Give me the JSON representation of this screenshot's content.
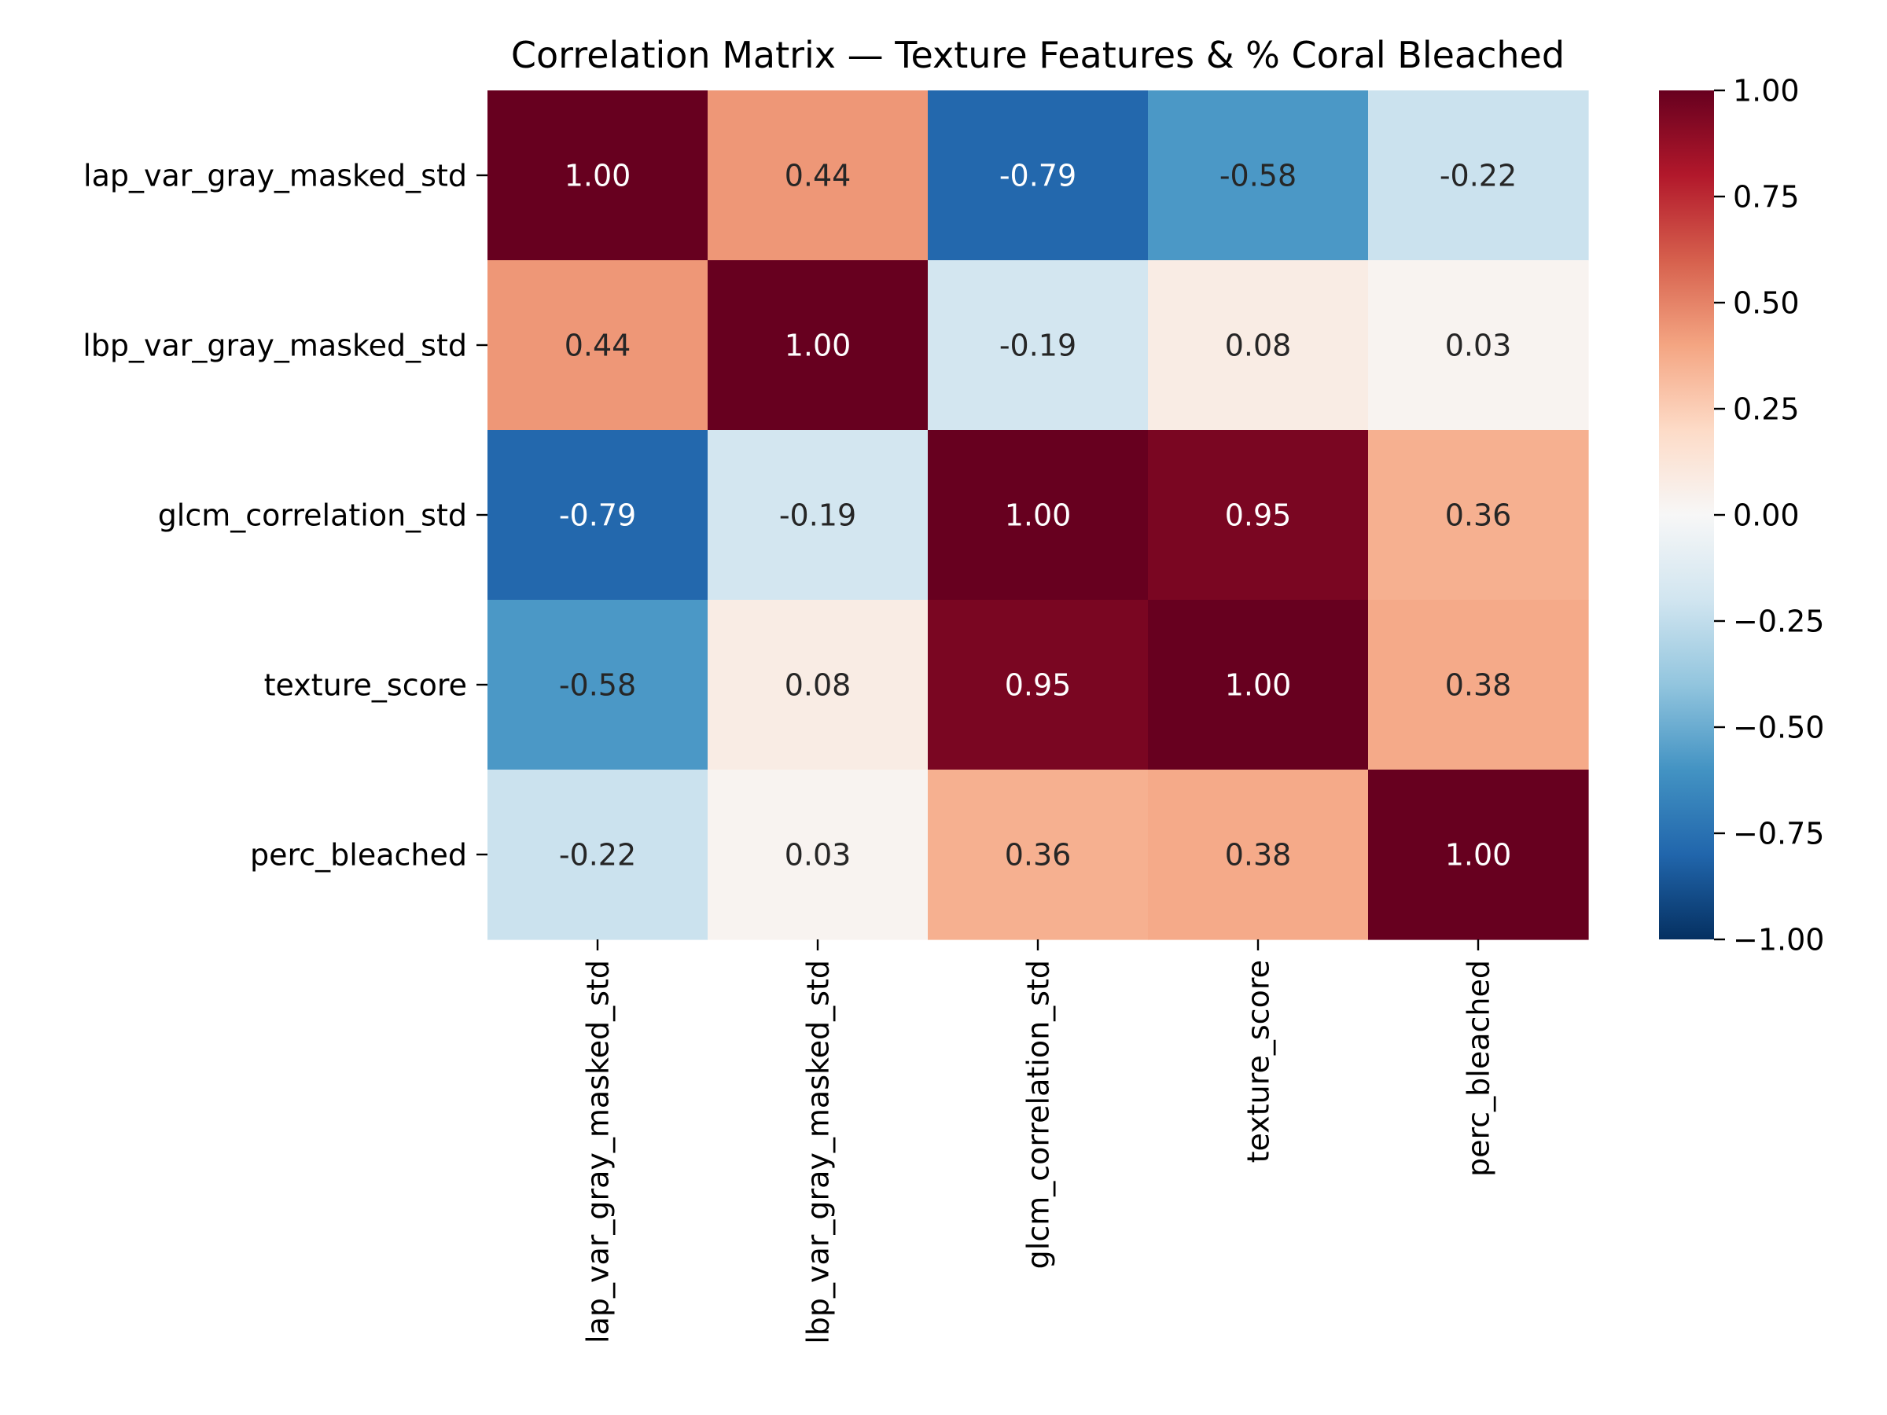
{
  "chart_data": {
    "type": "heatmap",
    "title": "Correlation Matrix — Texture Features & % Coral Bleached",
    "xlabel": "",
    "ylabel": "",
    "rows": [
      "lap_var_gray_masked_std",
      "lbp_var_gray_masked_std",
      "glcm_correlation_std",
      "texture_score",
      "perc_bleached"
    ],
    "columns": [
      "lap_var_gray_masked_std",
      "lbp_var_gray_masked_std",
      "glcm_correlation_std",
      "texture_score",
      "perc_bleached"
    ],
    "values": [
      [
        1.0,
        0.44,
        -0.79,
        -0.58,
        -0.22
      ],
      [
        0.44,
        1.0,
        -0.19,
        0.08,
        0.03
      ],
      [
        -0.79,
        -0.19,
        1.0,
        0.95,
        0.36
      ],
      [
        -0.58,
        0.08,
        0.95,
        1.0,
        0.38
      ],
      [
        -0.22,
        0.03,
        0.36,
        0.38,
        1.0
      ]
    ],
    "value_format": "0.00",
    "colorbar": {
      "range": [
        -1.0,
        1.0
      ],
      "ticks": [
        "1.00",
        "0.75",
        "0.50",
        "0.25",
        "0.00",
        "−0.25",
        "−0.50",
        "−0.75",
        "−1.00"
      ],
      "tick_values": [
        1.0,
        0.75,
        0.5,
        0.25,
        0.0,
        -0.25,
        -0.5,
        -0.75,
        -1.0
      ],
      "colormap": "RdBu_r",
      "stops": [
        "#053061",
        "#2166ac",
        "#4393c3",
        "#92c5de",
        "#d1e5f0",
        "#f7f7f7",
        "#fddbc7",
        "#f4a582",
        "#d6604d",
        "#b2182b",
        "#67001f"
      ]
    },
    "grid": false,
    "legend": "colorbar-right"
  }
}
